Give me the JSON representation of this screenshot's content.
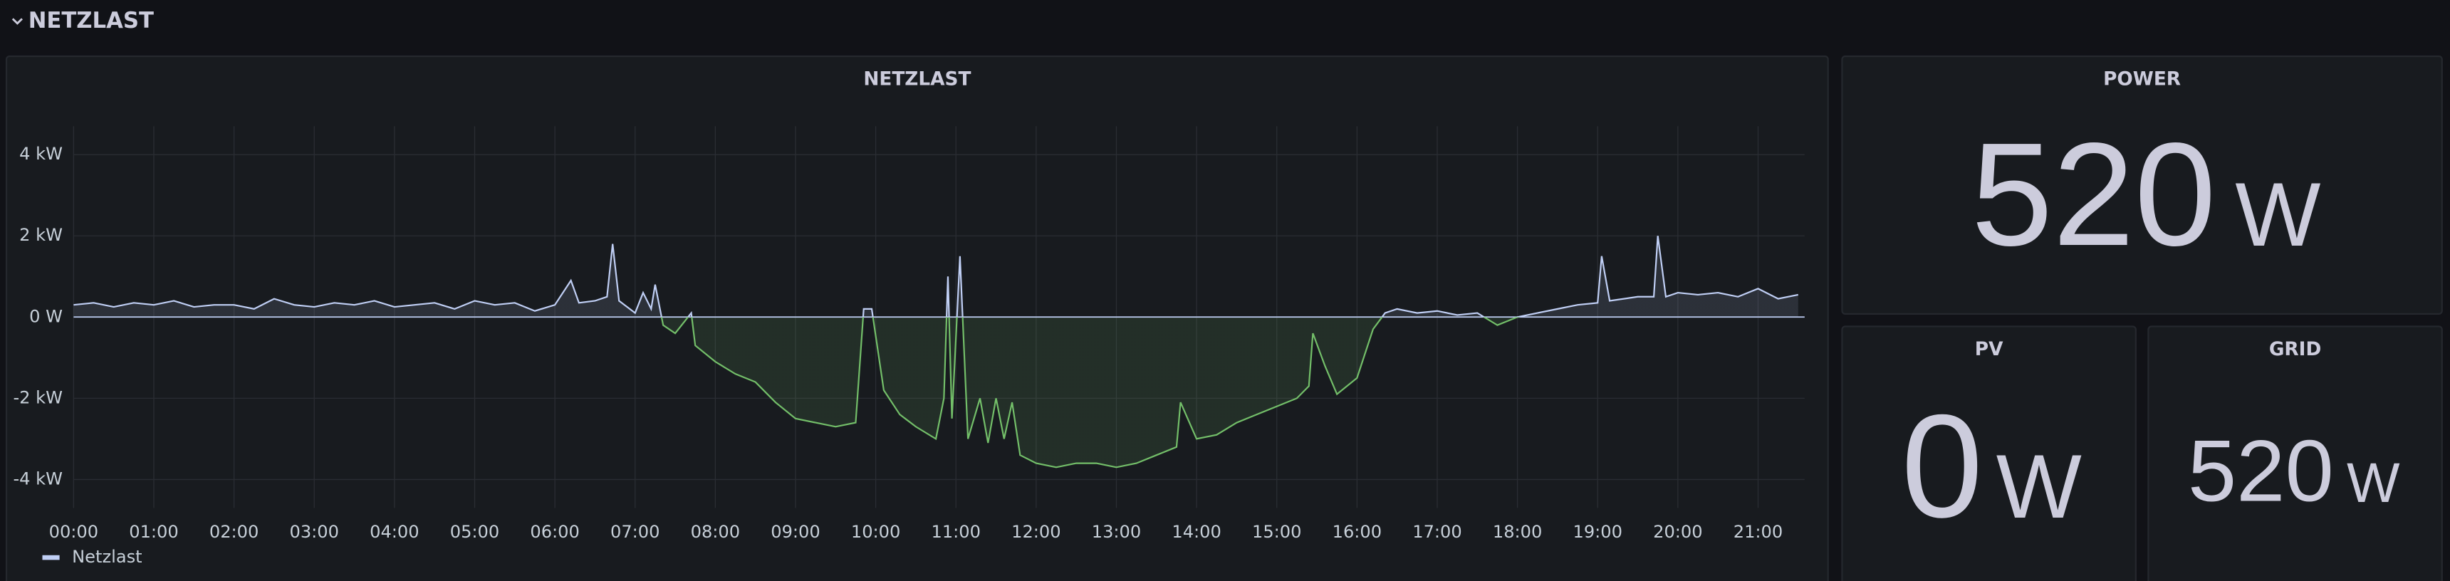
{
  "row_title": "NETZLAST",
  "chart_data": {
    "type": "line",
    "title": "NETZLAST",
    "x": [
      0,
      0.25,
      0.5,
      0.75,
      1,
      1.25,
      1.5,
      1.75,
      2,
      2.25,
      2.5,
      2.75,
      3,
      3.25,
      3.5,
      3.75,
      4,
      4.25,
      4.5,
      4.75,
      5,
      5.25,
      5.5,
      5.75,
      6,
      6.2,
      6.3,
      6.5,
      6.65,
      6.72,
      6.8,
      7,
      7.1,
      7.2,
      7.25,
      7.35,
      7.5,
      7.7,
      7.75,
      8,
      8.25,
      8.5,
      8.75,
      9,
      9.25,
      9.5,
      9.75,
      9.85,
      9.95,
      10.1,
      10.3,
      10.5,
      10.75,
      10.85,
      10.9,
      10.95,
      11.05,
      11.15,
      11.3,
      11.4,
      11.5,
      11.6,
      11.7,
      11.8,
      12,
      12.25,
      12.5,
      12.75,
      13,
      13.25,
      13.5,
      13.75,
      13.8,
      14,
      14.25,
      14.5,
      14.75,
      15,
      15.25,
      15.4,
      15.45,
      15.6,
      15.75,
      16,
      16.2,
      16.35,
      16.5,
      16.75,
      17,
      17.25,
      17.5,
      17.75,
      18,
      18.25,
      18.5,
      18.75,
      19,
      19.05,
      19.15,
      19.5,
      19.7,
      19.75,
      19.85,
      20,
      20.25,
      20.5,
      20.75,
      21,
      21.25,
      21.5
    ],
    "series": [
      {
        "name": "Netzlast",
        "color": "#c0cff5",
        "negative_color": "#73bf69",
        "values": [
          0.3,
          0.35,
          0.25,
          0.35,
          0.3,
          0.4,
          0.25,
          0.3,
          0.3,
          0.2,
          0.45,
          0.3,
          0.25,
          0.35,
          0.3,
          0.4,
          0.25,
          0.3,
          0.35,
          0.2,
          0.4,
          0.3,
          0.35,
          0.15,
          0.3,
          0.9,
          0.35,
          0.4,
          0.5,
          1.8,
          0.4,
          0.1,
          0.6,
          0.2,
          0.8,
          -0.2,
          -0.4,
          0.1,
          -0.7,
          -1.1,
          -1.4,
          -1.6,
          -2.1,
          -2.5,
          -2.6,
          -2.7,
          -2.6,
          0.2,
          0.2,
          -1.8,
          -2.4,
          -2.7,
          -3.0,
          -2.0,
          1.0,
          -2.5,
          1.5,
          -3.0,
          -2.0,
          -3.1,
          -2.0,
          -3.0,
          -2.1,
          -3.4,
          -3.6,
          -3.7,
          -3.6,
          -3.6,
          -3.7,
          -3.6,
          -3.4,
          -3.2,
          -2.1,
          -3.0,
          -2.9,
          -2.6,
          -2.4,
          -2.2,
          -2.0,
          -1.7,
          -0.4,
          -1.2,
          -1.9,
          -1.5,
          -0.3,
          0.1,
          0.2,
          0.1,
          0.15,
          0.05,
          0.1,
          -0.2,
          0.0,
          0.1,
          0.2,
          0.3,
          0.35,
          1.5,
          0.4,
          0.5,
          0.5,
          2.0,
          0.5,
          0.6,
          0.55,
          0.6,
          0.5,
          0.7,
          0.45,
          0.55
        ]
      }
    ],
    "xlim": [
      0,
      21.58
    ],
    "xticks": [
      {
        "value": 0,
        "label": "00:00"
      },
      {
        "value": 1,
        "label": "01:00"
      },
      {
        "value": 2,
        "label": "02:00"
      },
      {
        "value": 3,
        "label": "03:00"
      },
      {
        "value": 4,
        "label": "04:00"
      },
      {
        "value": 5,
        "label": "05:00"
      },
      {
        "value": 6,
        "label": "06:00"
      },
      {
        "value": 7,
        "label": "07:00"
      },
      {
        "value": 8,
        "label": "08:00"
      },
      {
        "value": 9,
        "label": "09:00"
      },
      {
        "value": 10,
        "label": "10:00"
      },
      {
        "value": 11,
        "label": "11:00"
      },
      {
        "value": 12,
        "label": "12:00"
      },
      {
        "value": 13,
        "label": "13:00"
      },
      {
        "value": 14,
        "label": "14:00"
      },
      {
        "value": 15,
        "label": "15:00"
      },
      {
        "value": 16,
        "label": "16:00"
      },
      {
        "value": 17,
        "label": "17:00"
      },
      {
        "value": 18,
        "label": "18:00"
      },
      {
        "value": 19,
        "label": "19:00"
      },
      {
        "value": 20,
        "label": "20:00"
      },
      {
        "value": 21,
        "label": "21:00"
      }
    ],
    "ylim": [
      -4.7,
      4.7
    ],
    "yticks": [
      {
        "value": -4,
        "label": "-4 kW"
      },
      {
        "value": -2,
        "label": "-2 kW"
      },
      {
        "value": 0,
        "label": "0 W"
      },
      {
        "value": 2,
        "label": "2 kW"
      },
      {
        "value": 4,
        "label": "4 kW"
      }
    ],
    "grid": true
  },
  "stats": [
    {
      "title": "POWER",
      "value": 520,
      "unit": "W"
    },
    {
      "title": "PV",
      "value": 0,
      "unit": "W"
    },
    {
      "title": "GRID",
      "value": 520,
      "unit": "W"
    }
  ]
}
